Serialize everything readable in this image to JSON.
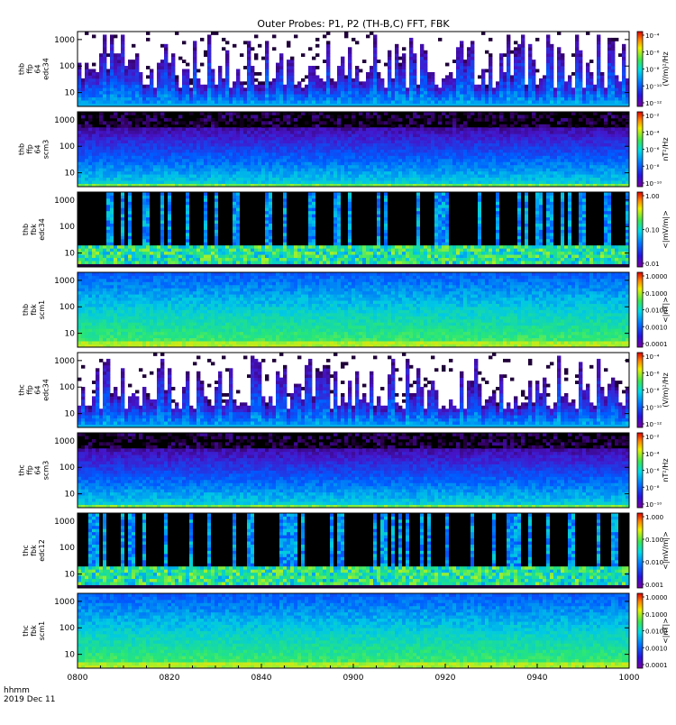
{
  "title": "Outer Probes: P1, P2 (TH-B,C) FFT, FBK",
  "footer": {
    "time_label": "hhmm",
    "date_label": "2019 Dec 11"
  },
  "chart_data": {
    "type": "heatmap",
    "title": "Outer Probes: P1, P2 (TH-B,C) FFT, FBK",
    "x": {
      "ticks": [
        "0800",
        "0820",
        "0840",
        "0900",
        "0920",
        "0940",
        "1000"
      ]
    },
    "panels": [
      {
        "id": "thb-ffp64-edc34",
        "ylabel": [
          "thb",
          "ffp",
          "64",
          "edc34"
        ],
        "yscale": "log",
        "yticks": [
          "10",
          "100",
          "1000"
        ],
        "intensity": "high-sparse",
        "colorbar": {
          "ticks": [
            "10⁻⁴",
            "10⁻⁶",
            "10⁻⁸",
            "10⁻¹⁰",
            "10⁻¹²"
          ],
          "units": "(V/m)²/Hz"
        }
      },
      {
        "id": "thb-ffp64-scm3",
        "ylabel": [
          "thb",
          "ffp",
          "64",
          "scm3"
        ],
        "yscale": "log",
        "yticks": [
          "10",
          "100",
          "1000"
        ],
        "intensity": "band",
        "colorbar": {
          "ticks": [
            "10⁻²",
            "10⁻⁴",
            "10⁻⁶",
            "10⁻⁸",
            "10⁻¹⁰"
          ],
          "units": "nT²/Hz"
        }
      },
      {
        "id": "thb-fbk-edc34",
        "ylabel": [
          "thb",
          "fbk",
          "edc34"
        ],
        "yscale": "log",
        "yticks": [
          "10",
          "100",
          "1000"
        ],
        "intensity": "dark-blocks",
        "colorbar": {
          "ticks": [
            "1.00",
            "0.10",
            "0.01"
          ],
          "units": "<|mV/m|>"
        }
      },
      {
        "id": "thb-fbk-scm1",
        "ylabel": [
          "thb",
          "fbk",
          "scm1"
        ],
        "yscale": "log",
        "yticks": [
          "10",
          "100",
          "1000"
        ],
        "intensity": "smooth",
        "colorbar": {
          "ticks": [
            "1.0000",
            "0.1000",
            "0.0100",
            "0.0010",
            "0.0001"
          ],
          "units": "<|nT|>"
        }
      },
      {
        "id": "thc-ffp64-edc34",
        "ylabel": [
          "thc",
          "ffp",
          "64",
          "edc34"
        ],
        "yscale": "log",
        "yticks": [
          "10",
          "100",
          "1000"
        ],
        "intensity": "high-sparse",
        "colorbar": {
          "ticks": [
            "10⁻⁴",
            "10⁻⁶",
            "10⁻⁸",
            "10⁻¹⁰",
            "10⁻¹²"
          ],
          "units": "(V/m)²/Hz"
        }
      },
      {
        "id": "thc-ffp64-scm3",
        "ylabel": [
          "thc",
          "ffp",
          "64",
          "scm3"
        ],
        "yscale": "log",
        "yticks": [
          "10",
          "100",
          "1000"
        ],
        "intensity": "band",
        "colorbar": {
          "ticks": [
            "10⁻²",
            "10⁻⁴",
            "10⁻⁶",
            "10⁻⁸",
            "10⁻¹⁰"
          ],
          "units": "nT²/Hz"
        }
      },
      {
        "id": "thc-fbk-edc12",
        "ylabel": [
          "thc",
          "fbk",
          "edc12"
        ],
        "yscale": "log",
        "yticks": [
          "10",
          "100",
          "1000"
        ],
        "intensity": "dark-blocks",
        "colorbar": {
          "ticks": [
            "1.000",
            "0.100",
            "0.010",
            "0.001"
          ],
          "units": "<|mV/m|>"
        }
      },
      {
        "id": "thc-fbk-scm1",
        "ylabel": [
          "thc",
          "fbk",
          "scm1"
        ],
        "yscale": "log",
        "yticks": [
          "10",
          "100",
          "1000"
        ],
        "intensity": "smooth",
        "colorbar": {
          "ticks": [
            "1.0000",
            "0.1000",
            "0.0100",
            "0.0010",
            "0.0001"
          ],
          "units": "<|nT|>"
        }
      }
    ]
  }
}
